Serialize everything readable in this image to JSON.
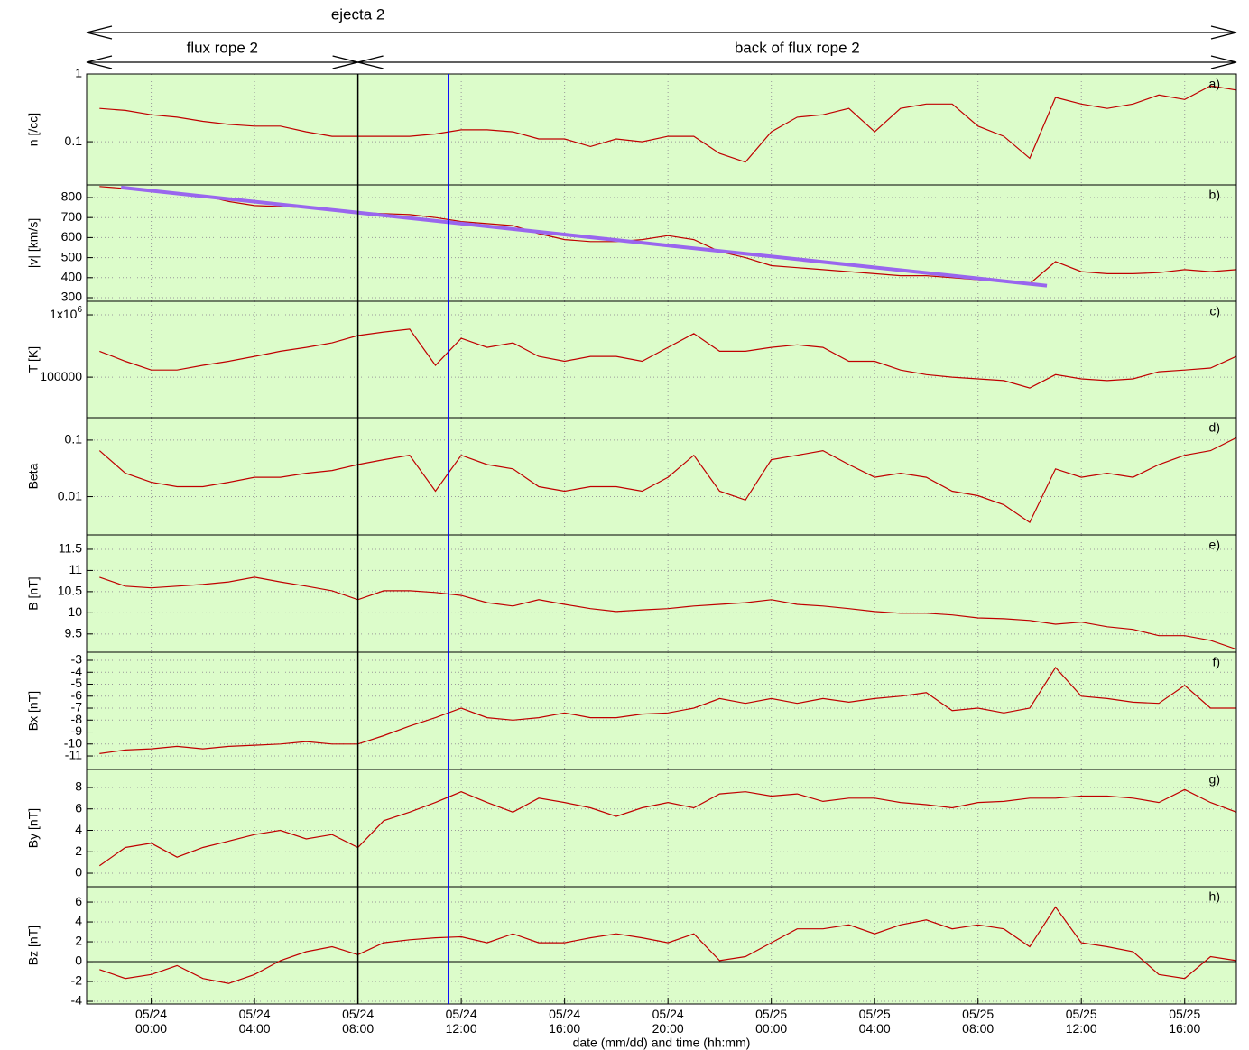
{
  "chart_data": {
    "type": "line",
    "x": [
      "05/23 22:00",
      "05/23 23:00",
      "05/24 00:00",
      "05/24 01:00",
      "05/24 02:00",
      "05/24 03:00",
      "05/24 04:00",
      "05/24 05:00",
      "05/24 06:00",
      "05/24 07:00",
      "05/24 08:00",
      "05/24 09:00",
      "05/24 10:00",
      "05/24 11:00",
      "05/24 12:00",
      "05/24 13:00",
      "05/24 14:00",
      "05/24 15:00",
      "05/24 16:00",
      "05/24 17:00",
      "05/24 18:00",
      "05/24 19:00",
      "05/24 20:00",
      "05/24 21:00",
      "05/24 22:00",
      "05/24 23:00",
      "05/25 00:00",
      "05/25 01:00",
      "05/25 02:00",
      "05/25 03:00",
      "05/25 04:00",
      "05/25 05:00",
      "05/25 06:00",
      "05/25 07:00",
      "05/25 08:00",
      "05/25 09:00",
      "05/25 10:00",
      "05/25 11:00",
      "05/25 12:00",
      "05/25 13:00",
      "05/25 14:00",
      "05/25 15:00",
      "05/25 16:00",
      "05/25 17:00",
      "05/25 18:00"
    ],
    "xlim": [
      "05/23 21:30",
      "05/25 18:00"
    ],
    "xticks": [
      "05/24 00:00",
      "05/24 04:00",
      "05/24 08:00",
      "05/24 12:00",
      "05/24 16:00",
      "05/24 20:00",
      "05/25 00:00",
      "05/25 04:00",
      "05/25 08:00",
      "05/25 12:00",
      "05/25 16:00"
    ],
    "xlabel": "date (mm/dd) and time (hh:mm)",
    "grid": true,
    "annotations": [
      {
        "text": "ejecta 2",
        "from": "05/23 21:30",
        "to": "05/25 18:00"
      },
      {
        "text": "flux rope 2",
        "from": "05/23 21:30",
        "to": "05/24 08:00"
      },
      {
        "text": "back of flux rope 2",
        "from": "05/24 08:00",
        "to": "05/25 18:00"
      }
    ],
    "vlines": [
      {
        "x": "05/24 08:00",
        "color": "#000000"
      },
      {
        "x": "05/24 11:30",
        "color": "#0000ff"
      }
    ],
    "panels": [
      {
        "ylabel": "n [/cc]",
        "letter": "a)",
        "log": true,
        "ylim": [
          0.023,
          1
        ],
        "yticks": [
          1,
          0.1
        ],
        "series": [
          {
            "color": "#c00000",
            "values": [
              0.31,
              0.29,
              0.25,
              0.23,
              0.2,
              0.18,
              0.17,
              0.17,
              0.14,
              0.12,
              0.12,
              0.12,
              0.12,
              0.13,
              0.15,
              0.15,
              0.14,
              0.11,
              0.11,
              0.085,
              0.11,
              0.1,
              0.12,
              0.12,
              0.067,
              0.05,
              0.14,
              0.23,
              0.25,
              0.31,
              0.14,
              0.31,
              0.36,
              0.36,
              0.17,
              0.12,
              0.057,
              0.45,
              0.36,
              0.31,
              0.36,
              0.49,
              0.42,
              0.67,
              0.58
            ]
          }
        ]
      },
      {
        "ylabel": "|v| [km/s]",
        "letter": "b)",
        "log": false,
        "ylim": [
          282,
          863
        ],
        "yticks": [
          300,
          400,
          500,
          600,
          700,
          800
        ],
        "series": [
          {
            "color": "#c00000",
            "values": [
              855,
              845,
              830,
              820,
              810,
              780,
              760,
              755,
              750,
              735,
              725,
              720,
              715,
              700,
              680,
              670,
              660,
              620,
              590,
              580,
              580,
              590,
              610,
              590,
              530,
              500,
              460,
              450,
              440,
              430,
              420,
              410,
              410,
              400,
              390,
              380,
              370,
              480,
              430,
              420,
              420,
              425,
              440,
              430,
              440
            ]
          }
        ],
        "fit": {
          "color": "#9966ee",
          "x": [
            "05/23 22:50",
            "05/25 10:40"
          ],
          "values": [
            850,
            360
          ]
        }
      },
      {
        "ylabel": "T [K]",
        "letter": "c)",
        "log": true,
        "ylim": [
          22400,
          1650000
        ],
        "yticks": [
          {
            "value": 1000000,
            "label": "1x10^6"
          },
          100000
        ],
        "series": [
          {
            "color": "#c00000",
            "values": [
              260000,
              180000,
              130000,
              130000,
              155000,
              180000,
              215000,
              260000,
              300000,
              355000,
              465000,
              530000,
              590000,
              155000,
              420000,
              300000,
              355000,
              215000,
              180000,
              215000,
              215000,
              180000,
              300000,
              500000,
              260000,
              260000,
              300000,
              330000,
              300000,
              180000,
              180000,
              130000,
              110000,
              100000,
              94000,
              88000,
              67000,
              110000,
              94000,
              88000,
              94000,
              122000,
              130000,
              140000,
              215000
            ]
          }
        ]
      },
      {
        "ylabel": "Beta",
        "letter": "d)",
        "log": true,
        "ylim": [
          0.0021,
          0.25
        ],
        "yticks": [
          0.1,
          0.01
        ],
        "series": [
          {
            "color": "#c00000",
            "values": [
              0.065,
              0.026,
              0.018,
              0.015,
              0.015,
              0.018,
              0.022,
              0.022,
              0.026,
              0.029,
              0.037,
              0.045,
              0.054,
              0.0125,
              0.054,
              0.037,
              0.031,
              0.015,
              0.0125,
              0.015,
              0.015,
              0.0125,
              0.022,
              0.054,
              0.0125,
              0.0087,
              0.045,
              0.054,
              0.065,
              0.037,
              0.022,
              0.026,
              0.022,
              0.0125,
              0.0104,
              0.0072,
              0.0035,
              0.031,
              0.022,
              0.026,
              0.022,
              0.037,
              0.054,
              0.065,
              0.11
            ]
          }
        ]
      },
      {
        "ylabel": "B [nT]",
        "letter": "e)",
        "log": false,
        "ylim": [
          9.07,
          11.84
        ],
        "yticks": [
          9.5,
          10,
          10.5,
          11,
          11.5
        ],
        "series": [
          {
            "color": "#c00000",
            "values": [
              10.84,
              10.63,
              10.59,
              10.63,
              10.67,
              10.73,
              10.84,
              10.73,
              10.63,
              10.52,
              10.31,
              10.52,
              10.52,
              10.48,
              10.41,
              10.24,
              10.16,
              10.31,
              10.2,
              10.1,
              10.03,
              10.07,
              10.1,
              10.16,
              10.2,
              10.24,
              10.31,
              10.2,
              10.16,
              10.1,
              10.03,
              9.99,
              9.99,
              9.95,
              9.88,
              9.86,
              9.82,
              9.73,
              9.78,
              9.67,
              9.61,
              9.46,
              9.46,
              9.35,
              9.14
            ]
          }
        ]
      },
      {
        "ylabel": "Bx [nT]",
        "letter": "f)",
        "log": false,
        "ylim": [
          -12.13,
          -2.32
        ],
        "yticks": [
          -11,
          -10,
          -9,
          -8,
          -7,
          -6,
          -5,
          -4,
          -3
        ],
        "series": [
          {
            "color": "#c00000",
            "values": [
              -10.8,
              -10.5,
              -10.4,
              -10.2,
              -10.4,
              -10.2,
              -10.1,
              -10,
              -9.8,
              -10,
              -10,
              -9.3,
              -8.5,
              -7.8,
              -7,
              -7.8,
              -8,
              -7.8,
              -7.4,
              -7.8,
              -7.8,
              -7.5,
              -7.4,
              -7,
              -6.2,
              -6.6,
              -6.2,
              -6.6,
              -6.2,
              -6.5,
              -6.2,
              -6,
              -5.7,
              -7.2,
              -7,
              -7.4,
              -7,
              -3.6,
              -6,
              -6.2,
              -6.5,
              -6.6,
              -5.1,
              -7,
              -7
            ]
          }
        ]
      },
      {
        "ylabel": "By [nT]",
        "letter": "g)",
        "log": false,
        "ylim": [
          -1.26,
          9.68
        ],
        "yticks": [
          0,
          2,
          4,
          6,
          8
        ],
        "series": [
          {
            "color": "#c00000",
            "values": [
              0.7,
              2.4,
              2.8,
              1.5,
              2.4,
              3,
              3.6,
              4,
              3.2,
              3.6,
              2.4,
              4.9,
              5.7,
              6.6,
              7.6,
              6.6,
              5.7,
              7,
              6.6,
              6.1,
              5.3,
              6.1,
              6.6,
              6.1,
              7.4,
              7.6,
              7.2,
              7.4,
              6.7,
              7,
              7,
              6.6,
              6.4,
              6.1,
              6.6,
              6.7,
              7,
              7,
              7.2,
              7.2,
              7,
              6.6,
              7.8,
              6.6,
              5.7
            ]
          }
        ]
      },
      {
        "ylabel": "Bz [nT]",
        "letter": "h)",
        "log": false,
        "ylim": [
          -4.27,
          7.55
        ],
        "yticks": [
          -4,
          -2,
          0,
          2,
          4,
          6
        ],
        "zero_line": true,
        "series": [
          {
            "color": "#c00000",
            "values": [
              -0.8,
              -1.7,
              -1.3,
              -0.4,
              -1.7,
              -2.2,
              -1.3,
              0.1,
              1,
              1.5,
              0.7,
              1.9,
              2.2,
              2.4,
              2.5,
              1.9,
              2.8,
              1.9,
              1.9,
              2.4,
              2.8,
              2.4,
              1.9,
              2.8,
              0.1,
              0.5,
              1.9,
              3.3,
              3.3,
              3.7,
              2.8,
              3.7,
              4.2,
              3.3,
              3.7,
              3.3,
              1.5,
              5.5,
              1.9,
              1.5,
              1,
              -1.3,
              -1.7,
              0.5,
              0.1
            ]
          }
        ]
      }
    ]
  }
}
